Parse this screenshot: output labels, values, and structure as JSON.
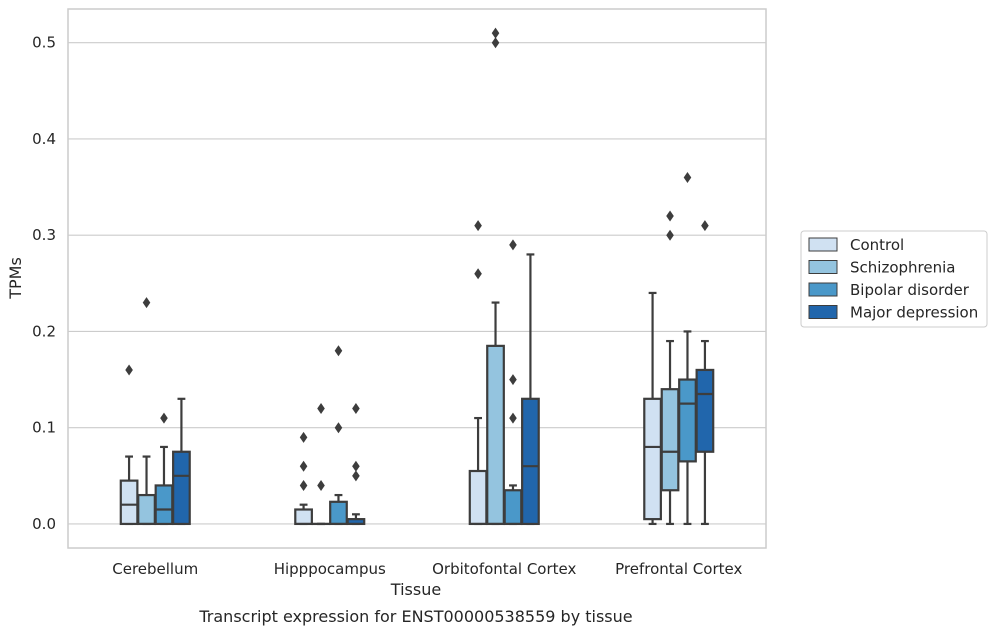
{
  "chart_data": {
    "type": "box",
    "title": "",
    "xlabel": "Tissue",
    "ylabel": "TPMs",
    "caption": "Transcript expression for ENST00000538559 by tissue",
    "categories": [
      "Cerebellum",
      "Hipppocampus",
      "Orbitofontal Cortex",
      "Prefrontal Cortex"
    ],
    "ylim": [
      -0.025,
      0.535
    ],
    "yticks": [
      0.0,
      0.1,
      0.2,
      0.3,
      0.4,
      0.5
    ],
    "ytick_labels": [
      "0.0",
      "0.1",
      "0.2",
      "0.3",
      "0.4",
      "0.5"
    ],
    "grid": "horizontal",
    "legend_position": "right",
    "series": [
      {
        "name": "Control",
        "color": "#d0e1f2",
        "boxes": [
          {
            "whislo": 0.0,
            "q1": 0.0,
            "med": 0.02,
            "q3": 0.045,
            "whishi": 0.07,
            "fliers": [
              0.16
            ]
          },
          {
            "whislo": 0.0,
            "q1": 0.0,
            "med": 0.0,
            "q3": 0.015,
            "whishi": 0.02,
            "fliers": [
              0.04,
              0.06,
              0.09
            ]
          },
          {
            "whislo": 0.0,
            "q1": 0.0,
            "med": 0.0,
            "q3": 0.055,
            "whishi": 0.11,
            "fliers": [
              0.26,
              0.31
            ]
          },
          {
            "whislo": 0.0,
            "q1": 0.005,
            "med": 0.08,
            "q3": 0.13,
            "whishi": 0.24,
            "fliers": []
          }
        ]
      },
      {
        "name": "Schizophrenia",
        "color": "#94c4df",
        "boxes": [
          {
            "whislo": 0.0,
            "q1": 0.0,
            "med": 0.0,
            "q3": 0.03,
            "whishi": 0.07,
            "fliers": [
              0.23
            ]
          },
          {
            "whislo": 0.0,
            "q1": 0.0,
            "med": 0.0,
            "q3": 0.0,
            "whishi": 0.0,
            "fliers": [
              0.04,
              0.12
            ]
          },
          {
            "whislo": 0.0,
            "q1": 0.0,
            "med": 0.0,
            "q3": 0.185,
            "whishi": 0.23,
            "fliers": [
              0.5,
              0.51
            ]
          },
          {
            "whislo": 0.0,
            "q1": 0.035,
            "med": 0.075,
            "q3": 0.14,
            "whishi": 0.19,
            "fliers": [
              0.3,
              0.32
            ]
          }
        ]
      },
      {
        "name": "Bipolar disorder",
        "color": "#4a98c9",
        "boxes": [
          {
            "whislo": 0.0,
            "q1": 0.0,
            "med": 0.015,
            "q3": 0.04,
            "whishi": 0.08,
            "fliers": [
              0.11
            ]
          },
          {
            "whislo": 0.0,
            "q1": 0.0,
            "med": 0.0,
            "q3": 0.023,
            "whishi": 0.03,
            "fliers": [
              0.1,
              0.18
            ]
          },
          {
            "whislo": 0.0,
            "q1": 0.0,
            "med": 0.0,
            "q3": 0.035,
            "whishi": 0.04,
            "fliers": [
              0.11,
              0.15,
              0.29
            ]
          },
          {
            "whislo": 0.0,
            "q1": 0.065,
            "med": 0.125,
            "q3": 0.15,
            "whishi": 0.2,
            "fliers": [
              0.36
            ]
          }
        ]
      },
      {
        "name": "Major depression",
        "color": "#2166ac",
        "boxes": [
          {
            "whislo": 0.0,
            "q1": 0.0,
            "med": 0.05,
            "q3": 0.075,
            "whishi": 0.13,
            "fliers": []
          },
          {
            "whislo": 0.0,
            "q1": 0.0,
            "med": 0.0,
            "q3": 0.005,
            "whishi": 0.01,
            "fliers": [
              0.05,
              0.06,
              0.12
            ]
          },
          {
            "whislo": 0.0,
            "q1": 0.0,
            "med": 0.06,
            "q3": 0.13,
            "whishi": 0.28,
            "fliers": []
          },
          {
            "whislo": 0.0,
            "q1": 0.075,
            "med": 0.135,
            "q3": 0.16,
            "whishi": 0.19,
            "fliers": [
              0.31
            ]
          }
        ]
      }
    ]
  }
}
